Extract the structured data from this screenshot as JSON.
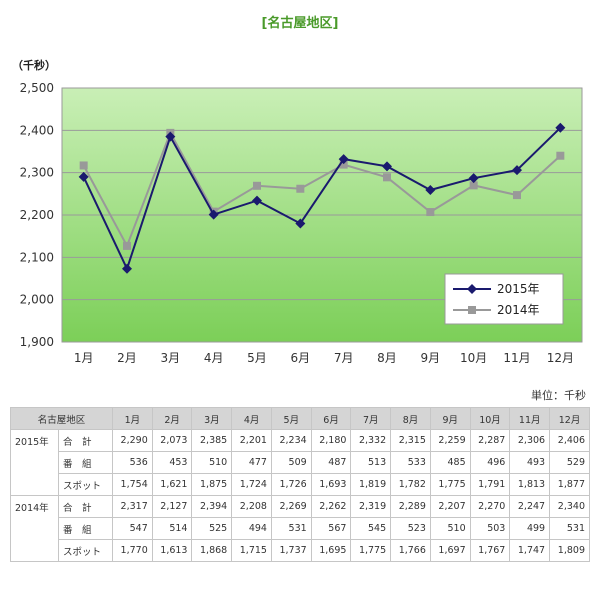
{
  "title": "[名古屋地区]",
  "unit_label": "（千秒）",
  "unit_note": "単位：千秒",
  "colors": {
    "series_2015": "#1a1a6e",
    "series_2014": "#999999",
    "plot_top": "#c9efb6",
    "plot_bottom": "#7ccf58",
    "title": "#4a9a2a"
  },
  "chart_data": {
    "type": "line",
    "categories": [
      "1月",
      "2月",
      "3月",
      "4月",
      "5月",
      "6月",
      "7月",
      "8月",
      "9月",
      "10月",
      "11月",
      "12月"
    ],
    "ylim": [
      1900,
      2500
    ],
    "y_ticks": [
      "1,900",
      "2,000",
      "2,100",
      "2,200",
      "2,300",
      "2,400",
      "2,500"
    ],
    "ylabel": "（千秒）",
    "grid": true,
    "legend": "bottom-right",
    "series": [
      {
        "name": "2015年",
        "marker": "diamond",
        "values": [
          2290,
          2073,
          2385,
          2201,
          2234,
          2180,
          2332,
          2315,
          2259,
          2287,
          2306,
          2406
        ]
      },
      {
        "name": "2014年",
        "marker": "square",
        "values": [
          2317,
          2127,
          2394,
          2208,
          2269,
          2262,
          2319,
          2289,
          2207,
          2270,
          2247,
          2340
        ]
      }
    ]
  },
  "table": {
    "corner": "名古屋地区",
    "months": [
      "1月",
      "2月",
      "3月",
      "4月",
      "5月",
      "6月",
      "7月",
      "8月",
      "9月",
      "10月",
      "11月",
      "12月"
    ],
    "groups": [
      {
        "year": "2015年",
        "rows": [
          {
            "label": "合　計",
            "values": [
              "2,290",
              "2,073",
              "2,385",
              "2,201",
              "2,234",
              "2,180",
              "2,332",
              "2,315",
              "2,259",
              "2,287",
              "2,306",
              "2,406"
            ]
          },
          {
            "label": "番　組",
            "values": [
              "536",
              "453",
              "510",
              "477",
              "509",
              "487",
              "513",
              "533",
              "485",
              "496",
              "493",
              "529"
            ]
          },
          {
            "label": "スポット",
            "values": [
              "1,754",
              "1,621",
              "1,875",
              "1,724",
              "1,726",
              "1,693",
              "1,819",
              "1,782",
              "1,775",
              "1,791",
              "1,813",
              "1,877"
            ]
          }
        ]
      },
      {
        "year": "2014年",
        "rows": [
          {
            "label": "合　計",
            "values": [
              "2,317",
              "2,127",
              "2,394",
              "2,208",
              "2,269",
              "2,262",
              "2,319",
              "2,289",
              "2,207",
              "2,270",
              "2,247",
              "2,340"
            ]
          },
          {
            "label": "番　組",
            "values": [
              "547",
              "514",
              "525",
              "494",
              "531",
              "567",
              "545",
              "523",
              "510",
              "503",
              "499",
              "531"
            ]
          },
          {
            "label": "スポット",
            "values": [
              "1,770",
              "1,613",
              "1,868",
              "1,715",
              "1,737",
              "1,695",
              "1,775",
              "1,766",
              "1,697",
              "1,767",
              "1,747",
              "1,809"
            ]
          }
        ]
      }
    ]
  }
}
